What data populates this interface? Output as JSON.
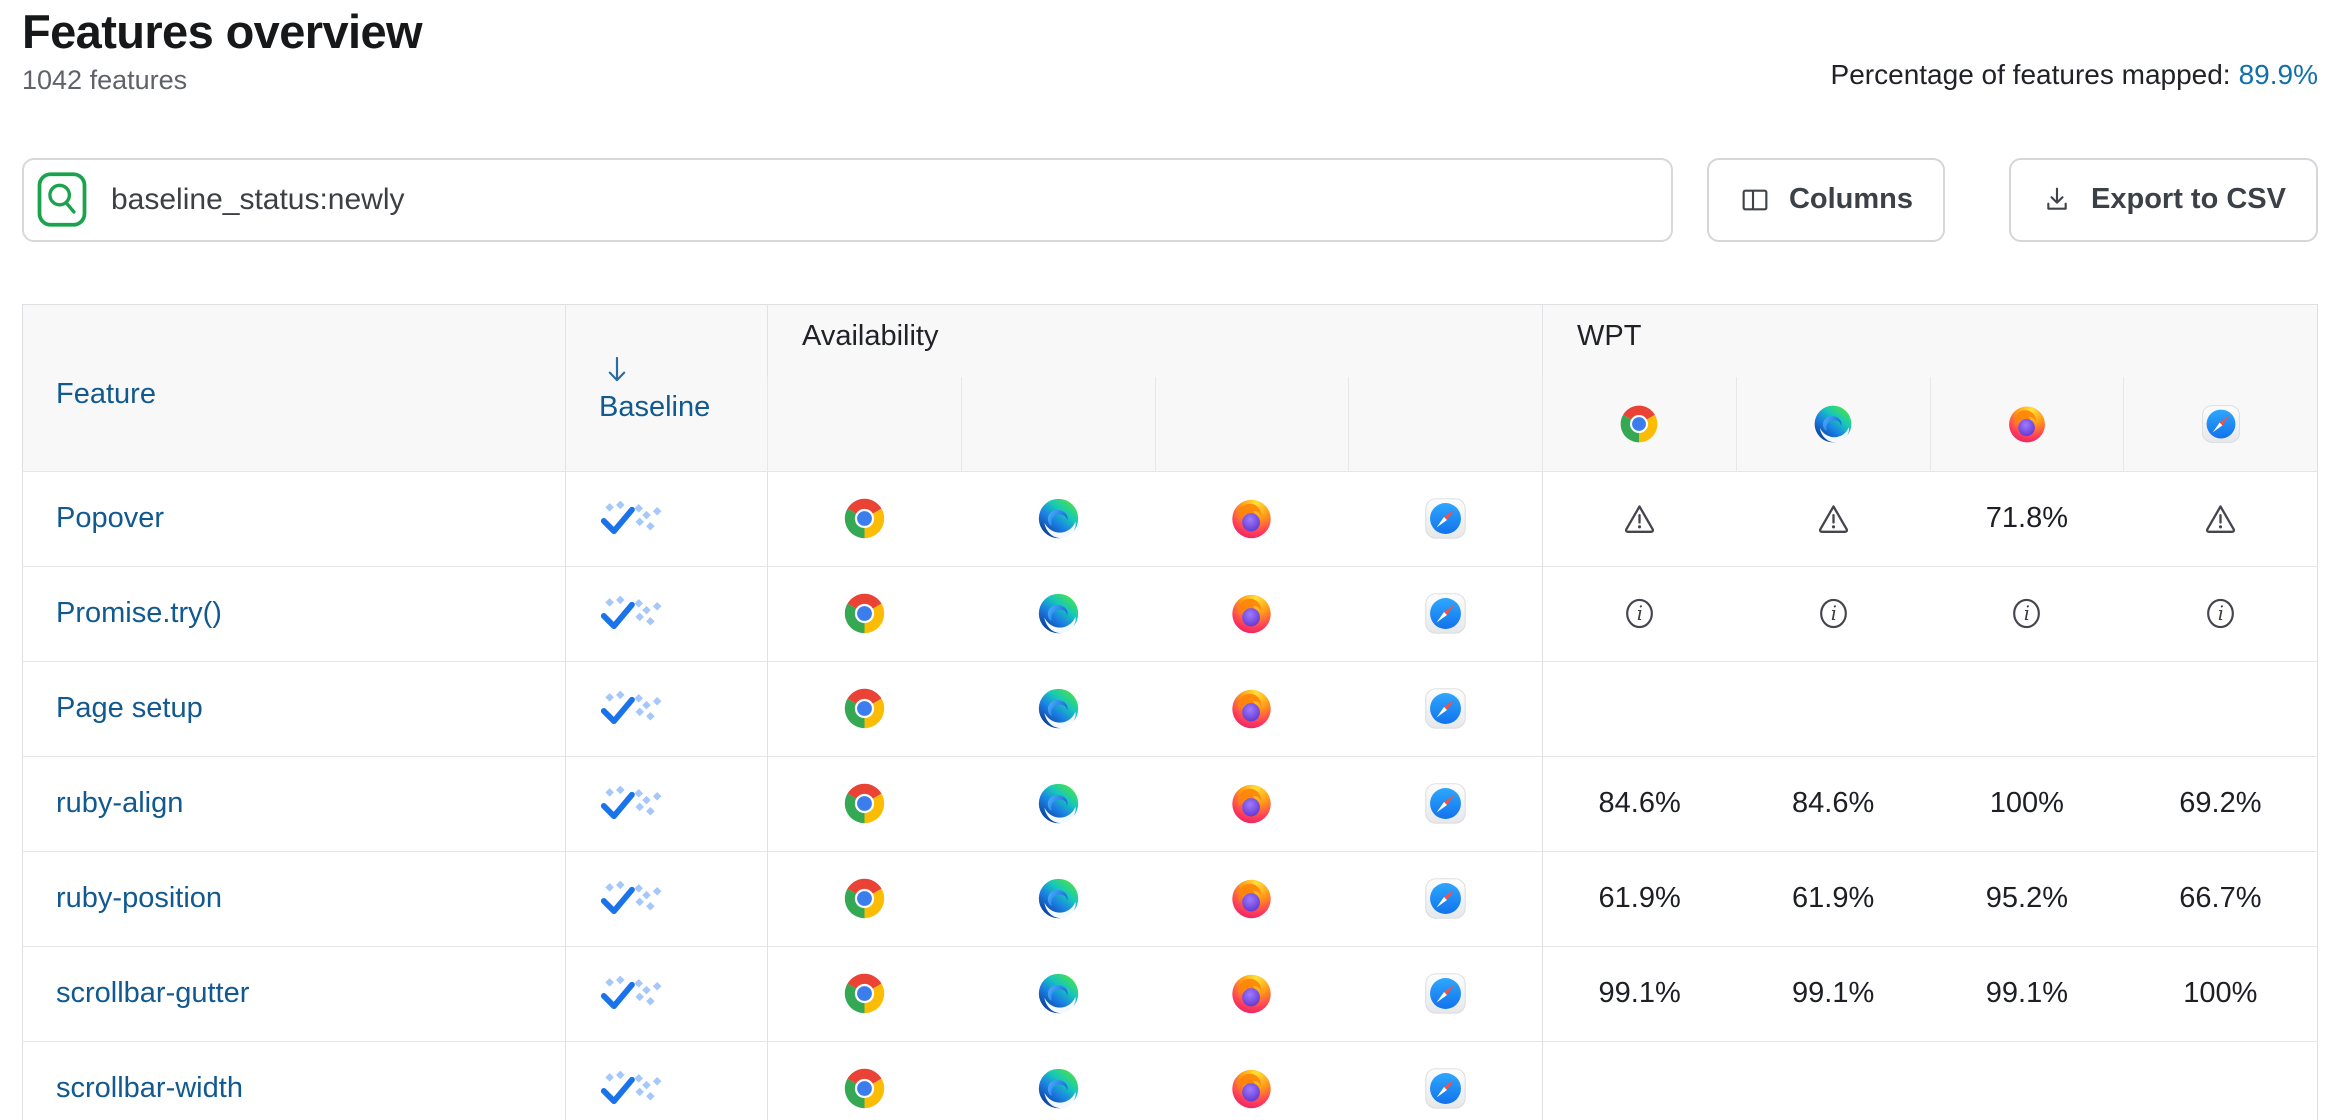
{
  "page": {
    "title": "Features overview",
    "feature_count": "1042 features",
    "mapped_label": "Percentage of features mapped:",
    "mapped_value": "89.9%"
  },
  "toolbar": {
    "search_value": "baseline_status:newly",
    "columns_label": "Columns",
    "export_label": "Export to CSV"
  },
  "icons": {
    "search": "magnifier-in-green-rounded-box",
    "columns": "two-column-layout",
    "export": "download-tray-arrow",
    "sort": "arrow-down",
    "baseline_newly": "blue-check-with-sparkle-diamonds",
    "warning": "warning-triangle-outline",
    "info": "info-circle-outline",
    "browsers": [
      "chrome",
      "edge",
      "firefox",
      "safari"
    ]
  },
  "colors": {
    "link_blue": "#11598f",
    "mapped_blue": "#1270a8",
    "search_green": "#18a34c",
    "baseline_check_blue": "#1a73e8",
    "baseline_sparkle_blue": "#a5c7fa",
    "header_bg": "#f8f8f9",
    "border_gray": "#e2e2e6"
  },
  "table": {
    "headers": {
      "feature": "Feature",
      "baseline": "Baseline",
      "sort_arrow": "down",
      "availability": "Availability",
      "wpt": "WPT",
      "wpt_browsers": [
        "chrome",
        "edge",
        "firefox",
        "safari"
      ]
    },
    "rows": [
      {
        "feature": "Popover",
        "baseline": "newly",
        "availability": [
          "chrome",
          "edge",
          "firefox",
          "safari"
        ],
        "wpt": [
          "warning",
          "warning",
          "71.8%",
          "warning"
        ]
      },
      {
        "feature": "Promise.try()",
        "baseline": "newly",
        "availability": [
          "chrome",
          "edge",
          "firefox",
          "safari"
        ],
        "wpt": [
          "info",
          "info",
          "info",
          "info"
        ]
      },
      {
        "feature": "Page setup",
        "baseline": "newly",
        "availability": [
          "chrome",
          "edge",
          "firefox",
          "safari"
        ],
        "wpt": [
          "",
          "",
          "",
          ""
        ]
      },
      {
        "feature": "ruby-align",
        "baseline": "newly",
        "availability": [
          "chrome",
          "edge",
          "firefox",
          "safari"
        ],
        "wpt": [
          "84.6%",
          "84.6%",
          "100%",
          "69.2%"
        ]
      },
      {
        "feature": "ruby-position",
        "baseline": "newly",
        "availability": [
          "chrome",
          "edge",
          "firefox",
          "safari"
        ],
        "wpt": [
          "61.9%",
          "61.9%",
          "95.2%",
          "66.7%"
        ]
      },
      {
        "feature": "scrollbar-gutter",
        "baseline": "newly",
        "availability": [
          "chrome",
          "edge",
          "firefox",
          "safari"
        ],
        "wpt": [
          "99.1%",
          "99.1%",
          "99.1%",
          "100%"
        ]
      },
      {
        "feature": "scrollbar-width",
        "baseline": "newly",
        "availability": [
          "chrome",
          "edge",
          "firefox",
          "safari"
        ],
        "wpt": [
          "",
          "",
          "",
          ""
        ]
      }
    ]
  }
}
